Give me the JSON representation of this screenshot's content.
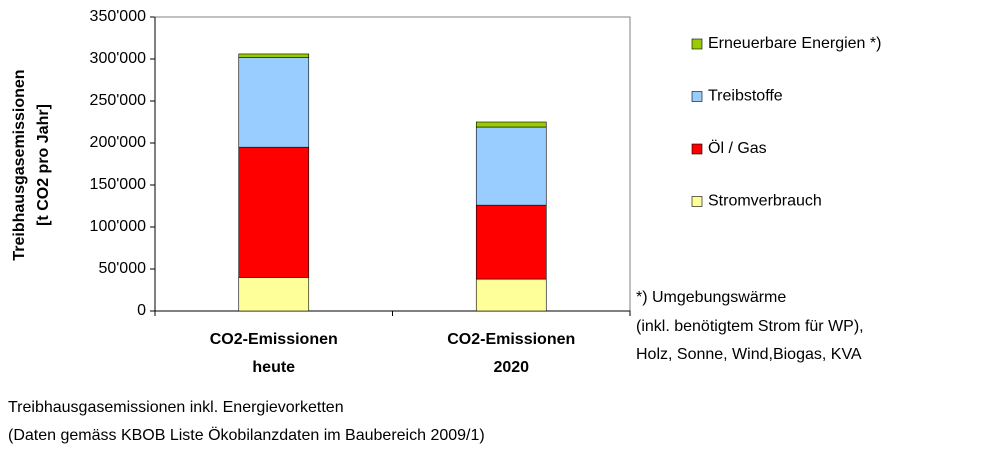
{
  "chart_data": {
    "type": "stacked_bar",
    "y_label": [
      "Treibhausgasemissionen",
      "[t CO2 pro Jahr]"
    ],
    "categories": [
      "CO2-Emissionen heute",
      "CO2-Emissionen 2020"
    ],
    "series": [
      {
        "name": "Stromverbrauch",
        "color": "#ffff99",
        "values": [
          40000,
          38000
        ]
      },
      {
        "name": "Öl / Gas",
        "color": "#ff0000",
        "values": [
          155000,
          88000
        ]
      },
      {
        "name": "Treibstoffe",
        "color": "#99ccff",
        "values": [
          107000,
          93000
        ]
      },
      {
        "name": "Erneuerbare Energien *)",
        "color": "#99cc00",
        "values": [
          4000,
          6000
        ]
      }
    ],
    "ylim": [
      0,
      350000
    ],
    "yticks": [
      0,
      {
        "value": 50000,
        "label": "50'000"
      },
      {
        "value": 100000,
        "label": "100'000"
      },
      {
        "value": 150000,
        "label": "150'000"
      },
      {
        "value": 200000,
        "label": "200'000"
      },
      {
        "value": 250000,
        "label": "250'000"
      },
      {
        "value": 300000,
        "label": "300'000"
      },
      {
        "value": 350000,
        "label": "350'000"
      }
    ],
    "annotation": [
      "*) Umgebungswärme",
      "(inkl. benötigtem Strom für WP),",
      "Holz, Sonne, Wind,Biogas, KVA"
    ],
    "notes": [
      "Treibhausgasemissionen inkl. Energievorketten",
      "(Daten gemäss KBOB Liste Ökobilanzdaten im Baubereich 2009/1)"
    ]
  }
}
